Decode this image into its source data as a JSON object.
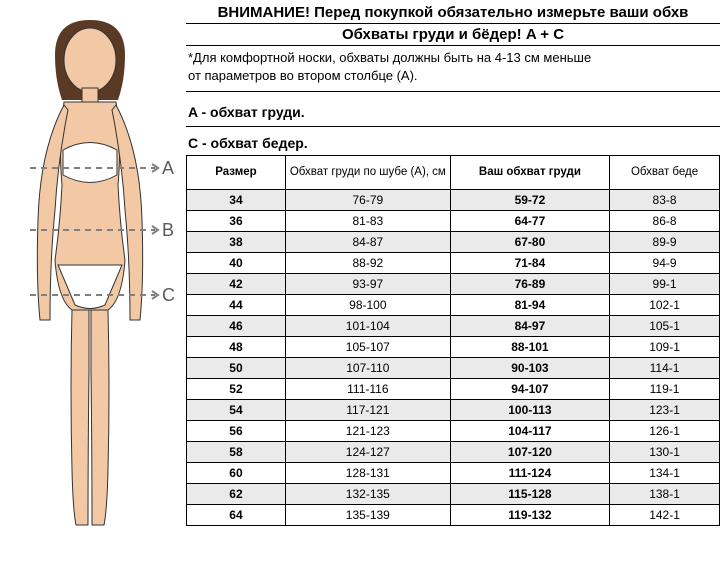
{
  "titles": {
    "line1": "ВНИМАНИЕ! Перед покупкой обязательно измерьте ваши обхв",
    "line2": "Обхваты груди и бёдер! A + C"
  },
  "note": {
    "l1": "*Для комфортной носки, обхваты должны быть на 4-13 см меньше",
    "l2": "от параметров во втором столбце (A)."
  },
  "sections": {
    "a": "A - обхват груди.",
    "c": "C - обхват бедер."
  },
  "figure": {
    "labels": {
      "a": "A",
      "b": "B",
      "c": "C"
    },
    "body_fill": "#f2c9a4",
    "underwear_fill": "#ffffff",
    "measure_line_color": "#808080",
    "outline_color": "#323232",
    "hair_color": "#5a3a25"
  },
  "table": {
    "headers": {
      "size": "Размер",
      "a": "Обхват груди по шубе (A), см",
      "your_bust": "Ваш обхват груди",
      "hip": "Обхват беде"
    },
    "rows": [
      {
        "size": "34",
        "a": "76-79",
        "bust": "59-72",
        "hip": "83-8"
      },
      {
        "size": "36",
        "a": "81-83",
        "bust": "64-77",
        "hip": "86-8"
      },
      {
        "size": "38",
        "a": "84-87",
        "bust": "67-80",
        "hip": "89-9"
      },
      {
        "size": "40",
        "a": "88-92",
        "bust": "71-84",
        "hip": "94-9"
      },
      {
        "size": "42",
        "a": "93-97",
        "bust": "76-89",
        "hip": "99-1"
      },
      {
        "size": "44",
        "a": "98-100",
        "bust": "81-94",
        "hip": "102-1"
      },
      {
        "size": "46",
        "a": "101-104",
        "bust": "84-97",
        "hip": "105-1"
      },
      {
        "size": "48",
        "a": "105-107",
        "bust": "88-101",
        "hip": "109-1"
      },
      {
        "size": "50",
        "a": "107-110",
        "bust": "90-103",
        "hip": "114-1"
      },
      {
        "size": "52",
        "a": "111-116",
        "bust": "94-107",
        "hip": "119-1"
      },
      {
        "size": "54",
        "a": "117-121",
        "bust": "100-113",
        "hip": "123-1"
      },
      {
        "size": "56",
        "a": "121-123",
        "bust": "104-117",
        "hip": "126-1"
      },
      {
        "size": "58",
        "a": "124-127",
        "bust": "107-120",
        "hip": "130-1"
      },
      {
        "size": "60",
        "a": "128-131",
        "bust": "111-124",
        "hip": "134-1"
      },
      {
        "size": "62",
        "a": "132-135",
        "bust": "115-128",
        "hip": "138-1"
      },
      {
        "size": "64",
        "a": "135-139",
        "bust": "119-132",
        "hip": "142-1"
      }
    ]
  },
  "colors": {
    "row_alt": "#eaeaea",
    "border": "#000000",
    "text": "#000000"
  }
}
